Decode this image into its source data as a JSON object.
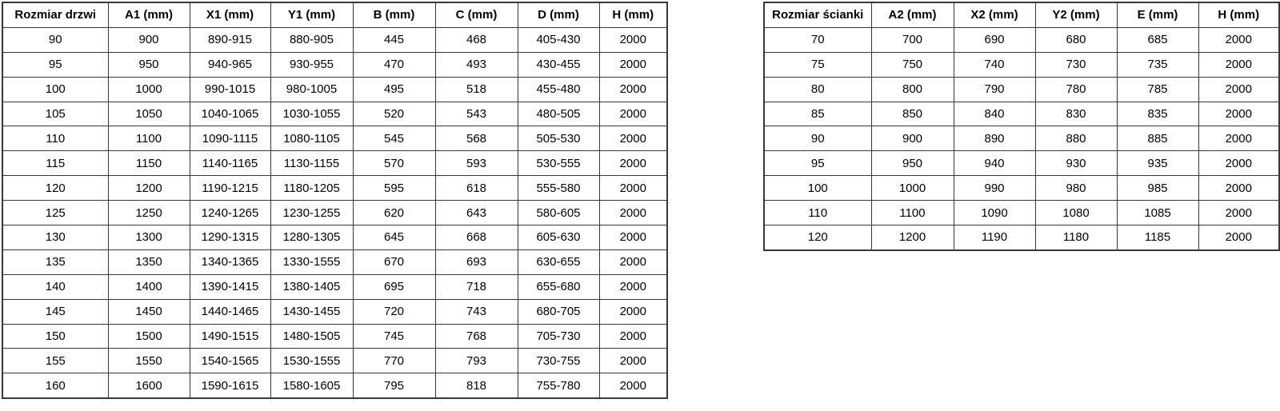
{
  "door_table": {
    "headers": [
      "Rozmiar drzwi",
      "A1 (mm)",
      "X1 (mm)",
      "Y1 (mm)",
      "B (mm)",
      "C (mm)",
      "D (mm)",
      "H (mm)"
    ],
    "rows": [
      [
        "90",
        "900",
        "890-915",
        "880-905",
        "445",
        "468",
        "405-430",
        "2000"
      ],
      [
        "95",
        "950",
        "940-965",
        "930-955",
        "470",
        "493",
        "430-455",
        "2000"
      ],
      [
        "100",
        "1000",
        "990-1015",
        "980-1005",
        "495",
        "518",
        "455-480",
        "2000"
      ],
      [
        "105",
        "1050",
        "1040-1065",
        "1030-1055",
        "520",
        "543",
        "480-505",
        "2000"
      ],
      [
        "110",
        "1100",
        "1090-1115",
        "1080-1105",
        "545",
        "568",
        "505-530",
        "2000"
      ],
      [
        "115",
        "1150",
        "1140-1165",
        "1130-1155",
        "570",
        "593",
        "530-555",
        "2000"
      ],
      [
        "120",
        "1200",
        "1190-1215",
        "1180-1205",
        "595",
        "618",
        "555-580",
        "2000"
      ],
      [
        "125",
        "1250",
        "1240-1265",
        "1230-1255",
        "620",
        "643",
        "580-605",
        "2000"
      ],
      [
        "130",
        "1300",
        "1290-1315",
        "1280-1305",
        "645",
        "668",
        "605-630",
        "2000"
      ],
      [
        "135",
        "1350",
        "1340-1365",
        "1330-1555",
        "670",
        "693",
        "630-655",
        "2000"
      ],
      [
        "140",
        "1400",
        "1390-1415",
        "1380-1405",
        "695",
        "718",
        "655-680",
        "2000"
      ],
      [
        "145",
        "1450",
        "1440-1465",
        "1430-1455",
        "720",
        "743",
        "680-705",
        "2000"
      ],
      [
        "150",
        "1500",
        "1490-1515",
        "1480-1505",
        "745",
        "768",
        "705-730",
        "2000"
      ],
      [
        "155",
        "1550",
        "1540-1565",
        "1530-1555",
        "770",
        "793",
        "730-755",
        "2000"
      ],
      [
        "160",
        "1600",
        "1590-1615",
        "1580-1605",
        "795",
        "818",
        "755-780",
        "2000"
      ]
    ]
  },
  "wall_table": {
    "headers": [
      "Rozmiar ścianki",
      "A2 (mm)",
      "X2 (mm)",
      "Y2 (mm)",
      "E (mm)",
      "H (mm)"
    ],
    "rows": [
      [
        "70",
        "700",
        "690",
        "680",
        "685",
        "2000"
      ],
      [
        "75",
        "750",
        "740",
        "730",
        "735",
        "2000"
      ],
      [
        "80",
        "800",
        "790",
        "780",
        "785",
        "2000"
      ],
      [
        "85",
        "850",
        "840",
        "830",
        "835",
        "2000"
      ],
      [
        "90",
        "900",
        "890",
        "880",
        "885",
        "2000"
      ],
      [
        "95",
        "950",
        "940",
        "930",
        "935",
        "2000"
      ],
      [
        "100",
        "1000",
        "990",
        "980",
        "985",
        "2000"
      ],
      [
        "110",
        "1100",
        "1090",
        "1080",
        "1085",
        "2000"
      ],
      [
        "120",
        "1200",
        "1190",
        "1180",
        "1185",
        "2000"
      ]
    ]
  },
  "colors": {
    "border": "#383838",
    "text": "#000000",
    "background": "#ffffff"
  }
}
